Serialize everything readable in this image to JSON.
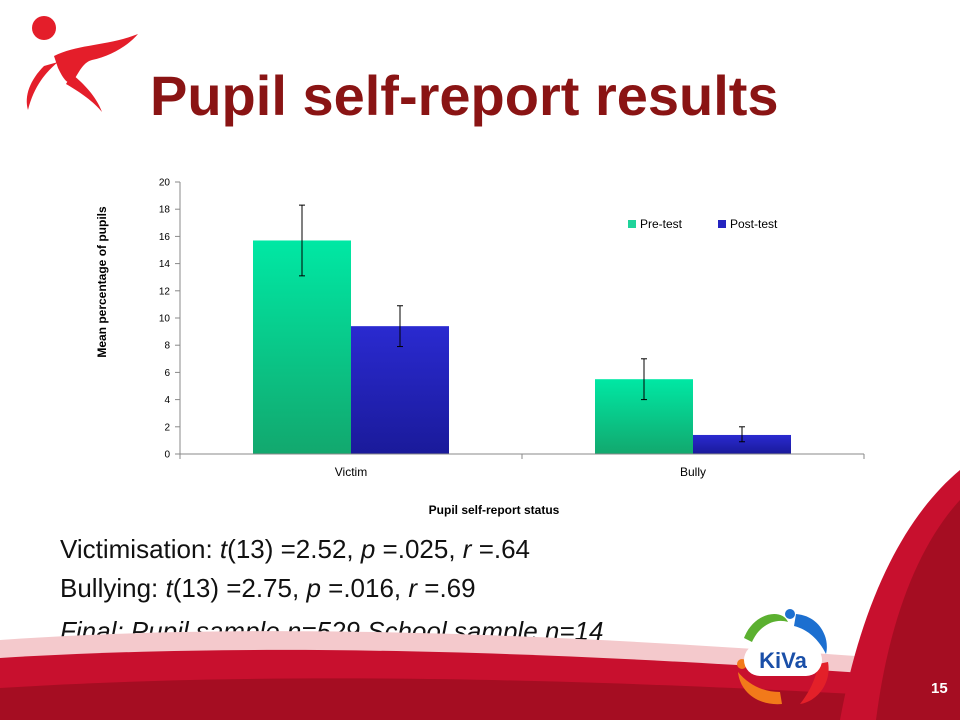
{
  "slide": {
    "title": "Pupil self-report results",
    "page_number": "15",
    "logo_text": "KiVa",
    "stats": {
      "victimisation": {
        "label": "Victimisation: ",
        "stat": "t",
        "df": "(13) =2.52, ",
        "p": "p",
        "p_val": " =.025, ",
        "r": "r",
        "r_val": " =.64"
      },
      "bullying": {
        "label": "Bullying: ",
        "stat": "t",
        "df": "(13) =2.75, ",
        "p": "p",
        "p_val": " =.016, ",
        "r": "r",
        "r_val": " =.69"
      },
      "final": "Final: Pupil sample n=529  School sample n=14"
    },
    "colors": {
      "title": "#8a1414",
      "accent_red": "#c8102e",
      "pretest": "#1fd39a",
      "posttest": "#2424c0"
    }
  },
  "chart_data": {
    "type": "bar",
    "categories": [
      "Victim",
      "Bully"
    ],
    "series": [
      {
        "name": "Pre-test",
        "values": [
          15.7,
          5.5
        ],
        "error_low": [
          13.1,
          4.0
        ],
        "error_high": [
          18.3,
          7.0
        ]
      },
      {
        "name": "Post-test",
        "values": [
          9.4,
          1.4
        ],
        "error_low": [
          7.9,
          0.9
        ],
        "error_high": [
          10.9,
          2.0
        ]
      }
    ],
    "title": "",
    "xlabel": "Pupil self-report status",
    "ylabel": "Mean percentage of pupils",
    "ylim": [
      0,
      20
    ],
    "yticks": [
      "0",
      "2",
      "4",
      "6",
      "8",
      "10",
      "12",
      "14",
      "16",
      "18",
      "20"
    ],
    "grid": false,
    "legend": "top-right"
  }
}
